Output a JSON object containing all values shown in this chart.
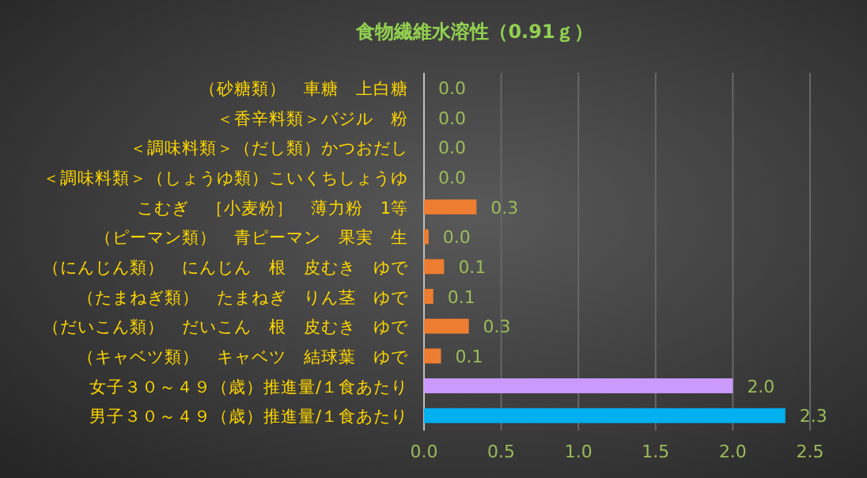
{
  "chart_data": {
    "type": "bar",
    "orientation": "horizontal",
    "title": "食物繊維水溶性（0.91ｇ）",
    "categories": [
      "（砂糖類）　車糖　上白糖",
      "＜香辛料類＞バジル　粉",
      "＜調味料類＞（だし類）かつおだし",
      "＜調味料類＞（しょうゆ類）こいくちしょうゆ",
      "こむぎ　［小麦粉］　薄力粉　1等",
      "（ピーマン類）　青ピーマン　果実　生",
      "（にんじん類）　にんじん　根　皮むき　ゆで",
      "（たまねぎ類）　たまねぎ　りん茎　ゆで",
      "（だいこん類）　だいこん　根　皮むき　ゆで",
      "（キャベツ類）　キャベツ　結球葉　ゆで",
      "女子３０～４９（歳）推進量/１食あたり",
      "男子３０～４９（歳）推進量/１食あたり"
    ],
    "values": [
      0,
      0,
      0,
      0,
      0.34,
      0.03,
      0.13,
      0.06,
      0.29,
      0.11,
      2.0,
      2.34
    ],
    "value_labels": [
      "0.0",
      "0.0",
      "0.0",
      "0.0",
      "0.3",
      "0.0",
      "0.1",
      "0.1",
      "0.3",
      "0.1",
      "2.0",
      "2.3"
    ],
    "colors": [
      "#ed7d31",
      "#ed7d31",
      "#ed7d31",
      "#ed7d31",
      "#ed7d31",
      "#ed7d31",
      "#ed7d31",
      "#ed7d31",
      "#ed7d31",
      "#ed7d31",
      "#cc99ff",
      "#00b0f0"
    ],
    "xlim": [
      0,
      2.5
    ],
    "xticks": [
      {
        "value": 0,
        "label": "0.0"
      },
      {
        "value": 0.5,
        "label": "0.5"
      },
      {
        "value": 1,
        "label": "1.0"
      },
      {
        "value": 1.5,
        "label": "1.5"
      },
      {
        "value": 2,
        "label": "2.0"
      },
      {
        "value": 2.5,
        "label": "2.5"
      }
    ],
    "grid": "x"
  }
}
